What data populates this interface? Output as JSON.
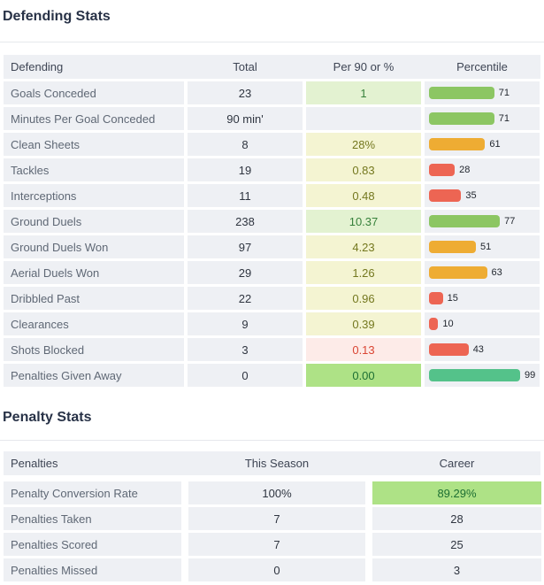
{
  "colors": {
    "bars": {
      "green": "#8cc663",
      "orange": "#eeac33",
      "red": "#ed6553",
      "teal": "#54c28a"
    },
    "cell_green_light": "#e3f2d1",
    "cell_yellow": "#f4f4d2",
    "cell_red": "#fdebe8",
    "cell_green_strong": "#aee286",
    "row_background": "#eef0f4",
    "title_color": "#283247"
  },
  "sections": [
    {
      "title": "Defending Stats",
      "columns": [
        "Defending",
        "Total",
        "Per 90 or %",
        "Percentile"
      ],
      "rows": [
        {
          "label": "Goals Conceded",
          "total": "23",
          "per90": "1",
          "per90_style": "green-light",
          "percentile": 71,
          "bar_color": "green"
        },
        {
          "label": "Minutes Per Goal Conceded",
          "total": "90 min'",
          "per90": "",
          "per90_style": "none",
          "percentile": 71,
          "bar_color": "green"
        },
        {
          "label": "Clean Sheets",
          "total": "8",
          "per90": "28%",
          "per90_style": "yellow",
          "percentile": 61,
          "bar_color": "orange"
        },
        {
          "label": "Tackles",
          "total": "19",
          "per90": "0.83",
          "per90_style": "yellow",
          "percentile": 28,
          "bar_color": "red"
        },
        {
          "label": "Interceptions",
          "total": "11",
          "per90": "0.48",
          "per90_style": "yellow",
          "percentile": 35,
          "bar_color": "red"
        },
        {
          "label": "Ground Duels",
          "total": "238",
          "per90": "10.37",
          "per90_style": "green-light",
          "percentile": 77,
          "bar_color": "green"
        },
        {
          "label": "Ground Duels Won",
          "total": "97",
          "per90": "4.23",
          "per90_style": "yellow",
          "percentile": 51,
          "bar_color": "orange"
        },
        {
          "label": "Aerial Duels Won",
          "total": "29",
          "per90": "1.26",
          "per90_style": "yellow",
          "percentile": 63,
          "bar_color": "orange"
        },
        {
          "label": "Dribbled Past",
          "total": "22",
          "per90": "0.96",
          "per90_style": "yellow",
          "percentile": 15,
          "bar_color": "red"
        },
        {
          "label": "Clearances",
          "total": "9",
          "per90": "0.39",
          "per90_style": "yellow",
          "percentile": 10,
          "bar_color": "red"
        },
        {
          "label": "Shots Blocked",
          "total": "3",
          "per90": "0.13",
          "per90_style": "red",
          "percentile": 43,
          "bar_color": "red"
        },
        {
          "label": "Penalties Given Away",
          "total": "0",
          "per90": "0.00",
          "per90_style": "green-strong",
          "percentile": 99,
          "bar_color": "teal"
        }
      ]
    },
    {
      "title": "Penalty Stats",
      "columns": [
        "Penalties",
        "This Season",
        "Career"
      ],
      "rows": [
        {
          "label": "Penalty Conversion Rate",
          "this_season": "100%",
          "career": "89.29%",
          "career_style": "green-strong"
        },
        {
          "label": "Penalties Taken",
          "this_season": "7",
          "career": "28",
          "career_style": "none"
        },
        {
          "label": "Penalties Scored",
          "this_season": "7",
          "career": "25",
          "career_style": "none"
        },
        {
          "label": "Penalties Missed",
          "this_season": "0",
          "career": "3",
          "career_style": "none"
        }
      ]
    }
  ]
}
